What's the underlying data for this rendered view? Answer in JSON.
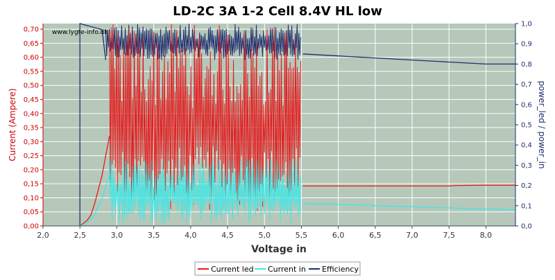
{
  "chart_data": {
    "type": "line",
    "title": "LD-2C 3A 1-2 Cell 8.4V HL low",
    "watermark": "www.lygte-info.dk",
    "xlabel": "Voltage in",
    "ylabel_left": "Current (Ampere)",
    "ylabel_right": "power_led / power_in",
    "xlim": [
      2.0,
      8.4
    ],
    "ylim_left": [
      0.0,
      0.72
    ],
    "ylim_right": [
      0.0,
      1.0
    ],
    "x_ticks": [
      "2,0",
      "2,5",
      "3,0",
      "3,5",
      "4,0",
      "4,5",
      "5,0",
      "5,5",
      "6,0",
      "6,5",
      "7,0",
      "7,5",
      "8,0"
    ],
    "y_left_ticks": [
      "0,00",
      "0,05",
      "0,10",
      "0,15",
      "0,20",
      "0,25",
      "0,30",
      "0,35",
      "0,40",
      "0,45",
      "0,50",
      "0,55",
      "0,60",
      "0,65",
      "0,70"
    ],
    "y_right_ticks": [
      "0,0",
      "0,1",
      "0,2",
      "0,3",
      "0,4",
      "0,5",
      "0,6",
      "0,7",
      "0,8",
      "0,9",
      "1,0"
    ],
    "grid": true,
    "legend_position": "bottom-center",
    "colors": {
      "plot_background": "#b5c8b9",
      "grid": "#ffffff",
      "current_led": "#e41a1c",
      "current_in": "#3de8e8",
      "efficiency": "#1f2d6e",
      "left_axis": "#cc0000",
      "right_axis": "#1f2d6e"
    },
    "series": [
      {
        "name": "Current led",
        "axis": "left",
        "regular": [
          {
            "x": [
              2.5,
              2.55,
              2.6,
              2.65,
              2.7,
              2.75,
              2.8,
              2.85,
              2.9
            ],
            "y": [
              0.0,
              0.01,
              0.02,
              0.04,
              0.08,
              0.13,
              0.18,
              0.25,
              0.32
            ]
          },
          {
            "x": [
              5.52,
              5.6,
              6.0,
              6.5,
              7.0,
              7.5,
              7.6,
              8.0,
              8.4
            ],
            "y": [
              0.142,
              0.142,
              0.142,
              0.142,
              0.142,
              0.142,
              0.144,
              0.145,
              0.145
            ]
          }
        ],
        "noisy": {
          "x_from": 2.9,
          "x_to": 5.5,
          "low": 0.05,
          "high": 0.72
        }
      },
      {
        "name": "Current in",
        "axis": "left",
        "regular": [
          {
            "x": [
              2.5,
              2.6,
              2.7,
              2.8,
              2.9
            ],
            "y": [
              0.0,
              0.01,
              0.04,
              0.1,
              0.18
            ]
          },
          {
            "x": [
              5.52,
              6.0,
              6.5,
              7.0,
              7.5,
              8.0,
              8.4
            ],
            "y": [
              0.08,
              0.077,
              0.072,
              0.068,
              0.064,
              0.06,
              0.058
            ]
          }
        ],
        "noisy": {
          "x_from": 2.9,
          "x_to": 5.5,
          "low": 0.01,
          "high": 0.24
        }
      },
      {
        "name": "Efficiency",
        "axis": "right",
        "regular": [
          {
            "x": [
              2.5,
              2.5,
              2.8,
              2.85
            ],
            "y": [
              0.0,
              1.0,
              0.97,
              0.82
            ]
          },
          {
            "x": [
              5.52,
              6.0,
              6.5,
              7.0,
              7.5,
              8.0,
              8.4
            ],
            "y": [
              0.85,
              0.84,
              0.83,
              0.82,
              0.81,
              0.8,
              0.8
            ]
          }
        ],
        "noisy": {
          "x_from": 2.85,
          "x_to": 5.5,
          "low": 0.82,
          "high": 1.0
        }
      }
    ]
  }
}
